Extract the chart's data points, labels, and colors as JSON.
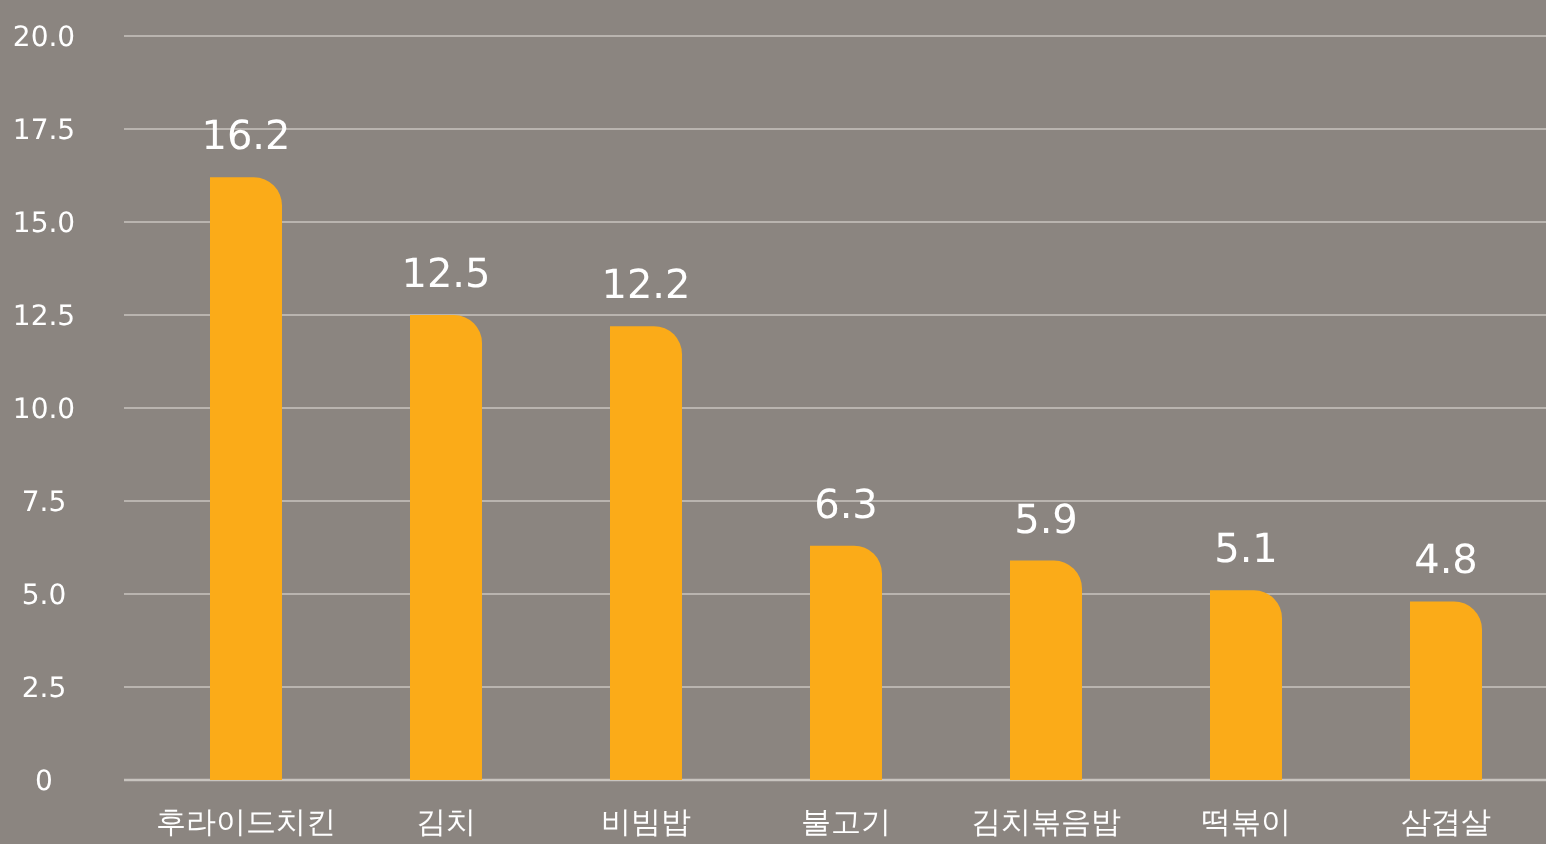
{
  "chart_data": {
    "type": "bar",
    "categories": [
      "후라이드치킨",
      "김치",
      "비빔밥",
      "불고기",
      "김치볶음밥",
      "떡볶이",
      "삼겹살"
    ],
    "values": [
      16.2,
      12.5,
      12.2,
      6.3,
      5.9,
      5.1,
      4.8
    ],
    "color": "#fbab18",
    "ylim": [
      0,
      20
    ],
    "yticks": [
      0,
      2.5,
      {
        "value": 5,
        "label": "5.0"
      },
      7.5,
      {
        "value": 10,
        "label": "10.0"
      },
      12.5,
      {
        "value": 15,
        "label": "15.0"
      },
      17.5,
      {
        "value": 20,
        "label": "20.0"
      }
    ],
    "grid": "y",
    "data_labels": true
  }
}
